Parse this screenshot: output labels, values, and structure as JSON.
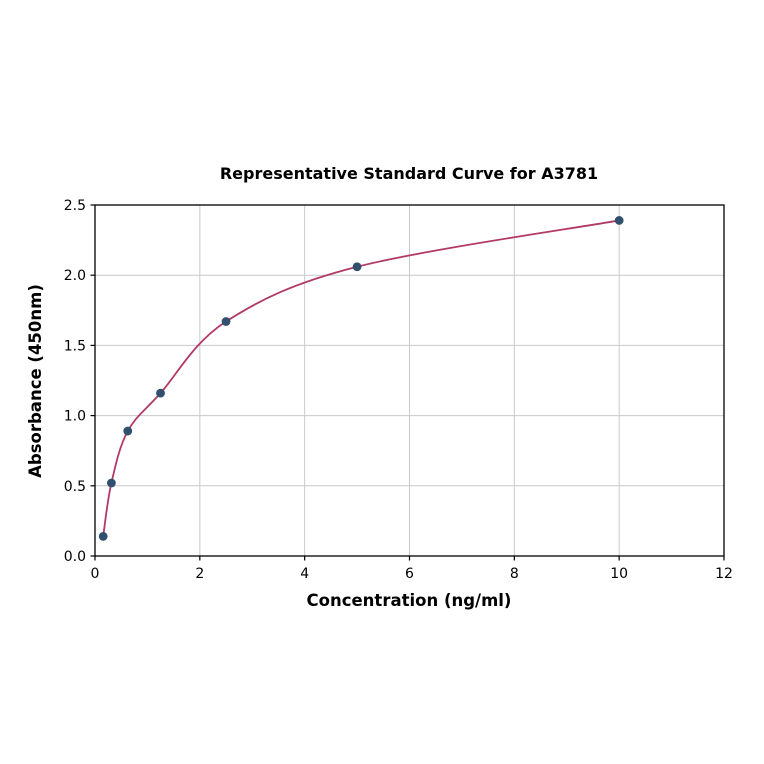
{
  "chart_data": {
    "type": "scatter",
    "title": "Representative Standard Curve for A3781",
    "xlabel": "Concentration (ng/ml)",
    "ylabel": "Absorbance (450nm)",
    "x": [
      0.156,
      0.313,
      0.625,
      1.25,
      2.5,
      5,
      10
    ],
    "y": [
      0.14,
      0.52,
      0.89,
      1.16,
      1.67,
      2.06,
      2.39
    ],
    "fit": "smooth saturation curve through points",
    "xlim": [
      0,
      12
    ],
    "ylim": [
      0,
      2.5
    ],
    "xticks": [
      0,
      2,
      4,
      6,
      8,
      10,
      12
    ],
    "xtick_labels": [
      "0",
      "2",
      "4",
      "6",
      "8",
      "10",
      "12"
    ],
    "yticks": [
      0,
      0.5,
      1,
      1.5,
      2,
      2.5
    ],
    "ytick_labels": [
      "0.0",
      "0.5",
      "1.0",
      "1.5",
      "2.0",
      "2.5"
    ],
    "grid": true,
    "legend": "none",
    "colors": {
      "point": "#31506e",
      "curve": "#b23a66",
      "grid": "#c9c9c9",
      "axis": "#000000",
      "background": "#ffffff"
    }
  }
}
